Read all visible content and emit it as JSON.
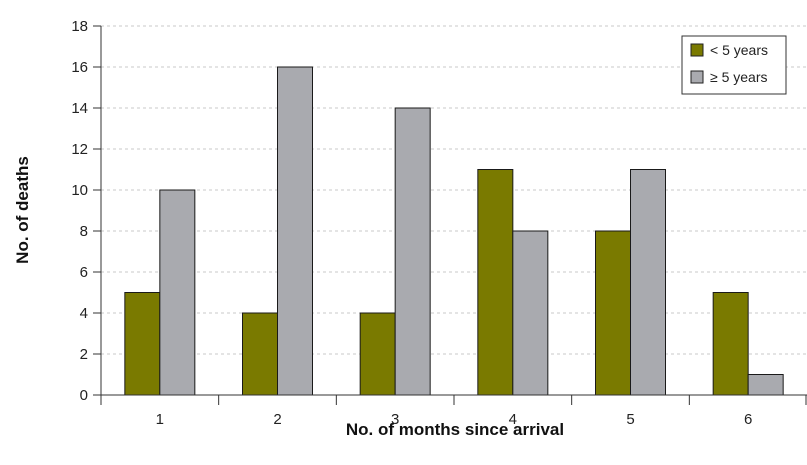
{
  "chart_data": {
    "type": "bar",
    "categories": [
      "1",
      "2",
      "3",
      "4",
      "5",
      "6"
    ],
    "series": [
      {
        "name": "< 5 years",
        "values": [
          5,
          4,
          4,
          11,
          8,
          5
        ],
        "color": "#7a7a00"
      },
      {
        "name": "≥ 5 years",
        "values": [
          10,
          16,
          14,
          8,
          11,
          1
        ],
        "color": "#a9aaaf"
      }
    ],
    "yticks": [
      "0",
      "2",
      "4",
      "6",
      "8",
      "10",
      "12",
      "14",
      "16",
      "18"
    ],
    "ylim": [
      0,
      18
    ],
    "xlabel": "No. of months since arrival",
    "ylabel": "No. of deaths",
    "grid": true,
    "legend_position": "top-right"
  }
}
